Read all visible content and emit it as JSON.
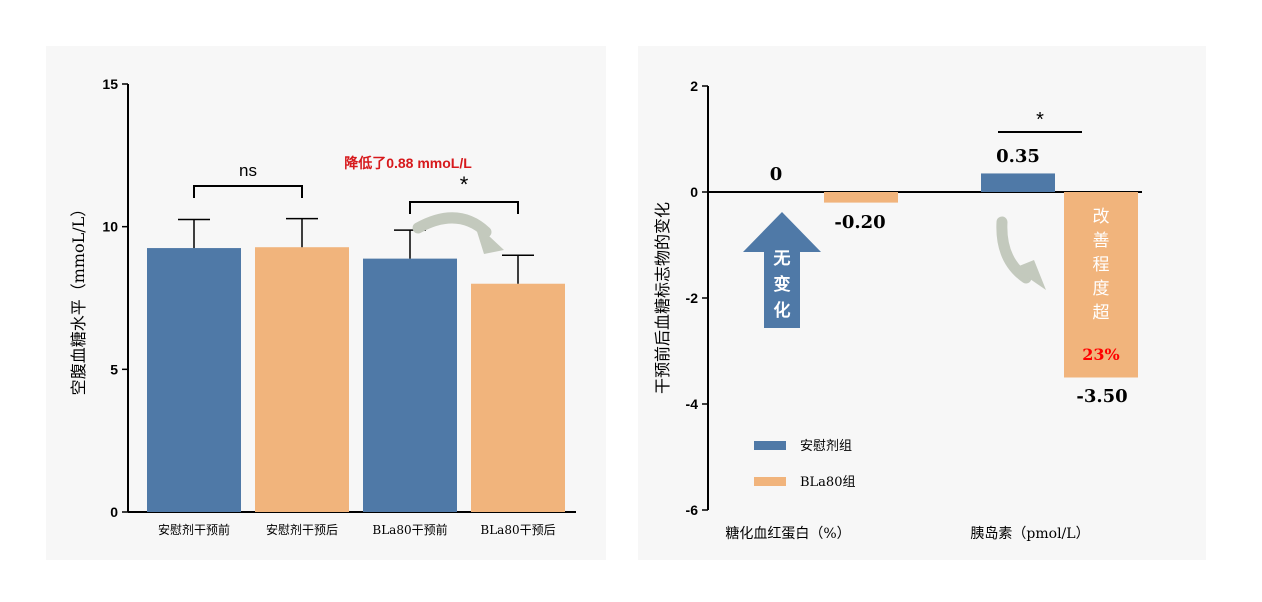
{
  "chart_data": [
    {
      "type": "bar",
      "categories": [
        "安慰剂干预前",
        "安慰剂干预后",
        "BLa80干预前",
        "BLa80干预后"
      ],
      "values": [
        9.25,
        9.28,
        8.88,
        8.0
      ],
      "errors": [
        1.0,
        1.0,
        1.0,
        1.0
      ],
      "ylabel": "空腹血糖水平（mmoL/L）",
      "ylim": [
        0,
        15
      ],
      "yticks": [
        "0",
        "5",
        "10",
        "15"
      ],
      "annotations": {
        "sig_left": "ns",
        "sig_right": "*",
        "callout": "降低了0.88 mmoL/L"
      },
      "colors": {
        "blue": "#4f79a7",
        "orange": "#f1b47c",
        "callout": "#d7191c"
      }
    },
    {
      "type": "bar",
      "categories": [
        "糖化血红蛋白（%）",
        "胰岛素（pmol/L）"
      ],
      "series": [
        {
          "name": "安慰剂组",
          "values": [
            0,
            0.35
          ]
        },
        {
          "name": "BLa80组",
          "values": [
            -0.2,
            -3.5
          ]
        }
      ],
      "ylabel": "干预前后血糖标志物的变化",
      "ylim": [
        -6,
        2
      ],
      "yticks": [
        "2",
        "0",
        "-2",
        "-4",
        "-6"
      ],
      "data_labels": [
        "0",
        "-0.20",
        "0.35",
        "-3.50"
      ],
      "annotations": {
        "sig": "*",
        "no_change": "无变化",
        "improve": "改善程度超",
        "improve_pct": "23%"
      },
      "legend": "bottom-left",
      "colors": {
        "blue": "#4f79a7",
        "orange": "#f1b47c",
        "arrow_blue": "#4f79a7",
        "pct_red": "#ff0000"
      }
    }
  ]
}
